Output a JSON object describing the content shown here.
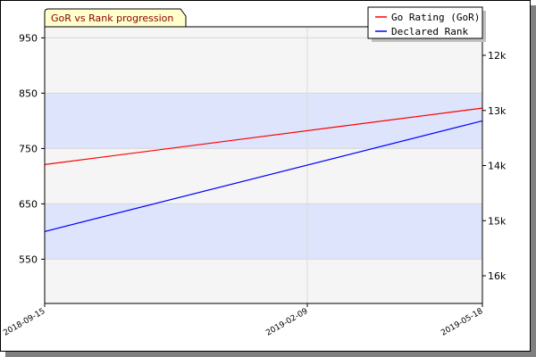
{
  "chart_data": {
    "type": "line",
    "title": "GoR vs Rank progression",
    "x_categories": [
      "2018-09-15",
      "2019-02-09",
      "2019-05-18"
    ],
    "x_range": [
      "2018-09-15",
      "2019-05-18"
    ],
    "y_left": {
      "ticks": [
        550,
        650,
        750,
        850,
        950
      ],
      "range": [
        470,
        970
      ]
    },
    "y_right": {
      "ticks": [
        "12k",
        "13k",
        "14k",
        "15k",
        "16k"
      ],
      "tick_values": [
        12,
        13,
        14,
        15,
        16
      ]
    },
    "legend_position": "top-right",
    "series": [
      {
        "name": "Go Rating (GoR)",
        "color": "#ff0000",
        "axis": "left",
        "points": [
          {
            "x": "2018-09-15",
            "y": 721
          },
          {
            "x": "2019-05-18",
            "y": 823
          }
        ]
      },
      {
        "name": "Declared Rank",
        "color": "#0000ff",
        "axis": "left",
        "points": [
          {
            "x": "2018-09-15",
            "y": 600
          },
          {
            "x": "2019-05-18",
            "y": 800
          }
        ]
      }
    ]
  }
}
